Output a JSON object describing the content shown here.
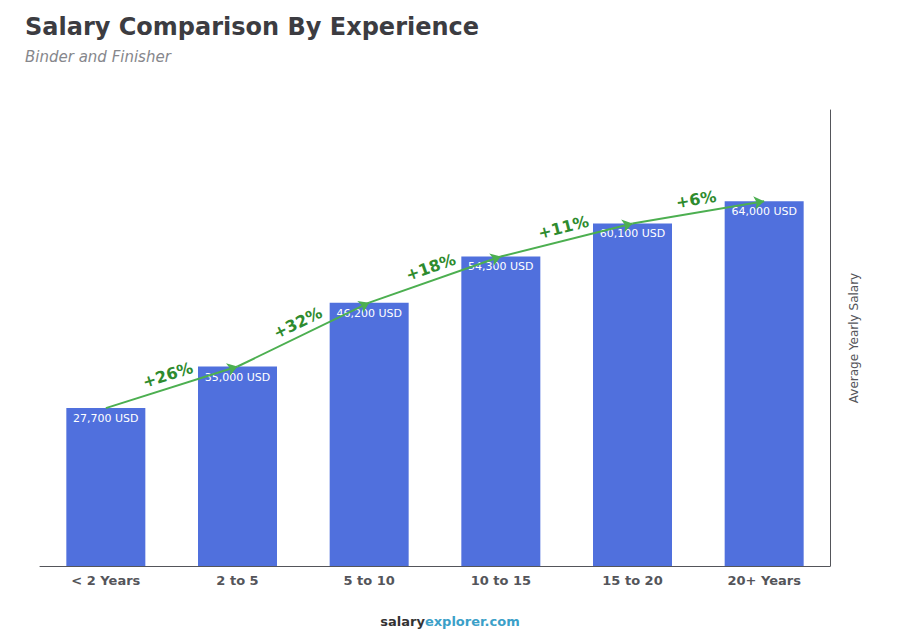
{
  "chart_data": {
    "type": "bar",
    "title": "Salary Comparison By Experience",
    "subtitle": "Binder and Finisher",
    "footer": [
      "salary",
      "explorer.com"
    ],
    "ylabel": "Average Yearly Salary",
    "categories": [
      "< 2 Years",
      "2 to 5",
      "5 to 10",
      "10 to 15",
      "15 to 20",
      "20+ Years"
    ],
    "values": [
      27700,
      35000,
      46200,
      54300,
      60100,
      64000
    ],
    "value_labels": [
      "27,700 USD",
      "35,000 USD",
      "46,200 USD",
      "54,300 USD",
      "60,100 USD",
      "64,000 USD"
    ],
    "data_labels": true,
    "annotations": [
      "+26%",
      "+32%",
      "+18%",
      "+11%",
      "+6%"
    ],
    "ylim": [
      0,
      80000
    ],
    "tick_labels": "x",
    "grid": false
  }
}
